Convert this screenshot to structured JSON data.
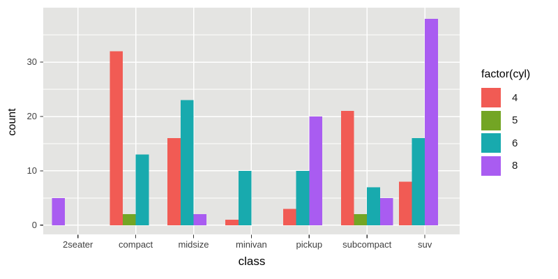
{
  "chart_data": {
    "type": "bar",
    "title": "",
    "xlabel": "class",
    "ylabel": "count",
    "categories": [
      "2seater",
      "compact",
      "midsize",
      "minivan",
      "pickup",
      "subcompact",
      "suv"
    ],
    "series": [
      {
        "name": "4",
        "color": "#F15B54",
        "values": [
          0,
          32,
          16,
          1,
          3,
          21,
          8
        ]
      },
      {
        "name": "5",
        "color": "#73A524",
        "values": [
          0,
          2,
          0,
          0,
          0,
          2,
          0
        ]
      },
      {
        "name": "6",
        "color": "#18AAAE",
        "values": [
          0,
          13,
          23,
          10,
          10,
          7,
          16
        ]
      },
      {
        "name": "8",
        "color": "#A95CF1",
        "values": [
          5,
          0,
          2,
          0,
          20,
          5,
          38
        ]
      }
    ],
    "ylim": [
      0,
      38
    ],
    "yticks": [
      0,
      10,
      20,
      30
    ],
    "ytick_labels": [
      "0",
      "10",
      "20",
      "30"
    ],
    "minor_yticks": [
      5,
      15,
      25,
      35
    ],
    "grid": true,
    "bar_layout": "dodged",
    "panel_background": "#E4E4E2",
    "gridline_color": "#FFFFFF",
    "tick_color": "#333333",
    "legend": {
      "title": "factor(cyl)",
      "position": "right",
      "entries": [
        {
          "label": "4",
          "color": "#F15B54"
        },
        {
          "label": "5",
          "color": "#73A524"
        },
        {
          "label": "6",
          "color": "#18AAAE"
        },
        {
          "label": "8",
          "color": "#A95CF1"
        }
      ]
    }
  }
}
